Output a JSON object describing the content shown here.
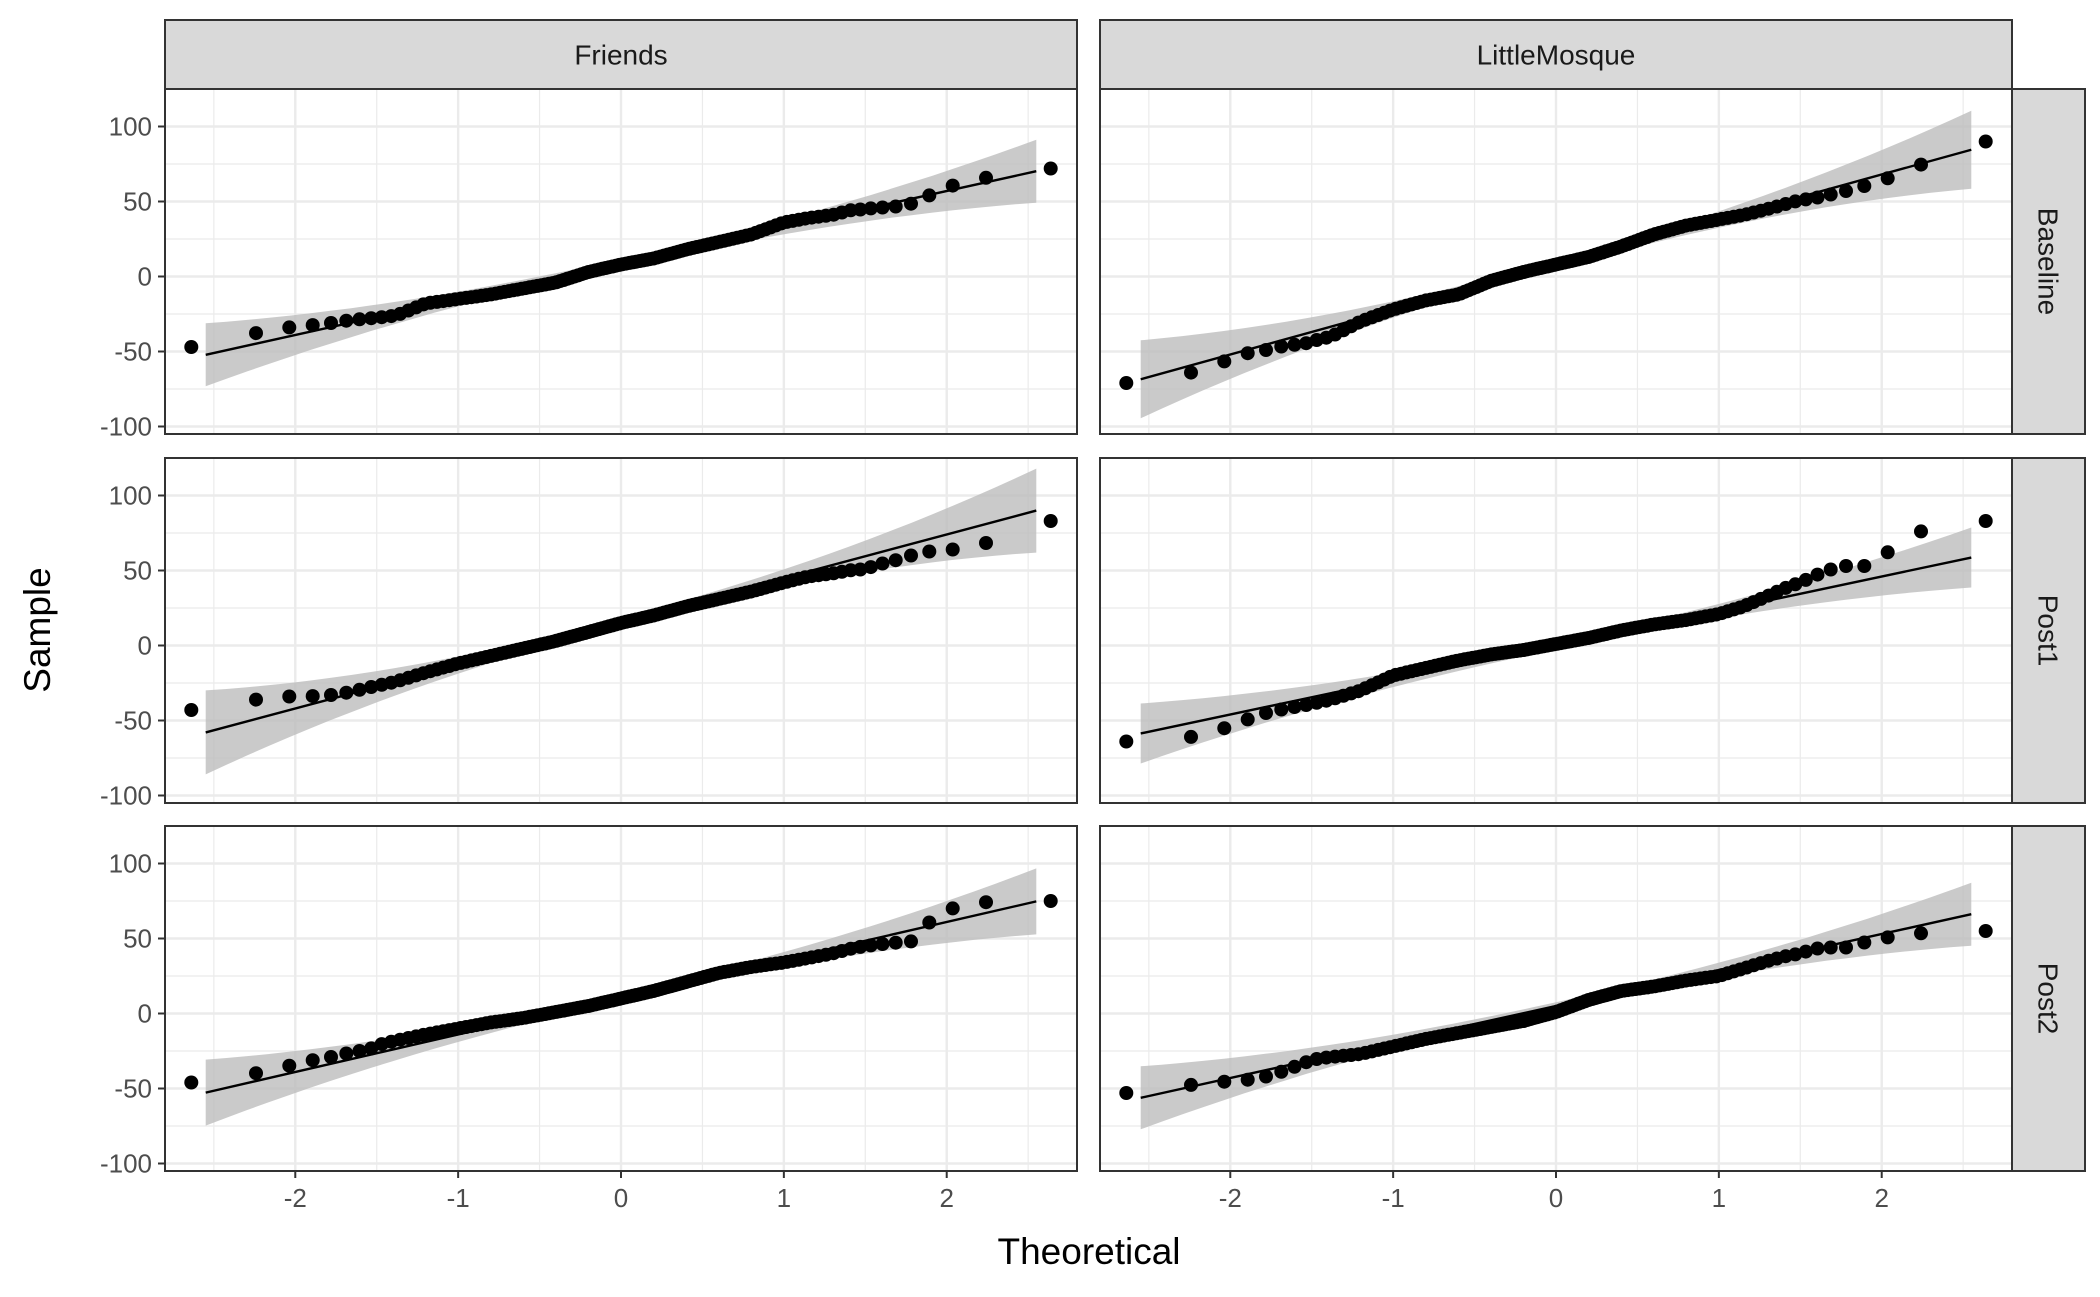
{
  "chart_data": {
    "type": "scatter",
    "subtype": "qq-plot-faceted",
    "xlabel": "Theoretical",
    "ylabel": "Sample",
    "xlim": [
      -2.8,
      2.8
    ],
    "ylim": [
      -105,
      125
    ],
    "x_ticks": [
      -2,
      -1,
      0,
      1,
      2
    ],
    "y_ticks": [
      -100,
      -50,
      0,
      50,
      100
    ],
    "x_tick_labels": [
      "-2",
      "-1",
      "0",
      "1",
      "2"
    ],
    "y_tick_labels": [
      "-100",
      "-50",
      "0",
      "50",
      "100"
    ],
    "columns": [
      "Friends",
      "LittleMosque"
    ],
    "rows": [
      "Baseline",
      "Post1",
      "Post2"
    ],
    "grid": true,
    "colors": {
      "points": "#000000",
      "line": "#000000",
      "band": "#bdbdbd",
      "strip": "#d9d9d9",
      "grid": "#ebebeb"
    },
    "panels": [
      {
        "column": "Friends",
        "row": "Baseline",
        "n": 120,
        "line": {
          "intercept": 9,
          "slope": 24
        },
        "band_halfwidth_at_extremes": 21,
        "points": [
          [
            -2.55,
            -47
          ],
          [
            -2.15,
            -35
          ],
          [
            -1.94,
            -33
          ],
          [
            -1.78,
            -31
          ],
          [
            -1.66,
            -29
          ],
          [
            -1.55,
            -28
          ],
          [
            -1.46,
            -27
          ],
          [
            -1.38,
            -26
          ],
          [
            -1.2,
            -18
          ],
          [
            -1.0,
            -15
          ],
          [
            -0.8,
            -12
          ],
          [
            -0.6,
            -8
          ],
          [
            -0.4,
            -4
          ],
          [
            -0.2,
            3
          ],
          [
            0.0,
            8
          ],
          [
            0.2,
            12
          ],
          [
            0.4,
            18
          ],
          [
            0.6,
            23
          ],
          [
            0.8,
            28
          ],
          [
            1.0,
            36
          ],
          [
            1.15,
            39
          ],
          [
            1.3,
            41
          ],
          [
            1.4,
            44
          ],
          [
            1.5,
            45
          ],
          [
            1.58,
            46
          ],
          [
            1.66,
            46
          ],
          [
            1.74,
            48
          ],
          [
            1.82,
            49
          ],
          [
            1.95,
            58
          ],
          [
            2.15,
            64
          ],
          [
            2.55,
            72
          ]
        ]
      },
      {
        "column": "LittleMosque",
        "row": "Baseline",
        "n": 120,
        "line": {
          "intercept": 8,
          "slope": 30
        },
        "band_halfwidth_at_extremes": 26,
        "points": [
          [
            -2.55,
            -71
          ],
          [
            -2.15,
            -62
          ],
          [
            -1.94,
            -52
          ],
          [
            -1.78,
            -49
          ],
          [
            -1.66,
            -46
          ],
          [
            -1.55,
            -45
          ],
          [
            -1.46,
            -42
          ],
          [
            -1.38,
            -40
          ],
          [
            -1.2,
            -30
          ],
          [
            -1.0,
            -22
          ],
          [
            -0.8,
            -16
          ],
          [
            -0.6,
            -12
          ],
          [
            -0.4,
            -3
          ],
          [
            -0.2,
            3
          ],
          [
            0.0,
            8
          ],
          [
            0.2,
            13
          ],
          [
            0.4,
            20
          ],
          [
            0.6,
            28
          ],
          [
            0.8,
            34
          ],
          [
            1.0,
            38
          ],
          [
            1.15,
            41
          ],
          [
            1.3,
            45
          ],
          [
            1.4,
            48
          ],
          [
            1.5,
            51
          ],
          [
            1.58,
            52
          ],
          [
            1.66,
            54
          ],
          [
            1.78,
            57
          ],
          [
            1.95,
            62
          ],
          [
            2.15,
            70
          ],
          [
            2.55,
            90
          ]
        ]
      },
      {
        "column": "Friends",
        "row": "Post1",
        "n": 120,
        "line": {
          "intercept": 16,
          "slope": 29
        },
        "band_halfwidth_at_extremes": 28,
        "points": [
          [
            -2.55,
            -43
          ],
          [
            -2.15,
            -34
          ],
          [
            -1.94,
            -34
          ],
          [
            -1.78,
            -33
          ],
          [
            -1.66,
            -31
          ],
          [
            -1.55,
            -28
          ],
          [
            -1.46,
            -26
          ],
          [
            -1.38,
            -24
          ],
          [
            -1.2,
            -18
          ],
          [
            -1.0,
            -12
          ],
          [
            -0.8,
            -7
          ],
          [
            -0.6,
            -2
          ],
          [
            -0.4,
            3
          ],
          [
            -0.2,
            9
          ],
          [
            0.0,
            15
          ],
          [
            0.2,
            20
          ],
          [
            0.4,
            26
          ],
          [
            0.6,
            31
          ],
          [
            0.8,
            36
          ],
          [
            1.0,
            42
          ],
          [
            1.15,
            46
          ],
          [
            1.3,
            48
          ],
          [
            1.4,
            50
          ],
          [
            1.5,
            51
          ],
          [
            1.58,
            54
          ],
          [
            1.66,
            56
          ],
          [
            1.78,
            60
          ],
          [
            1.95,
            64
          ],
          [
            2.15,
            64
          ],
          [
            2.55,
            83
          ]
        ]
      },
      {
        "column": "LittleMosque",
        "row": "Post1",
        "n": 120,
        "line": {
          "intercept": 0,
          "slope": 23
        },
        "band_halfwidth_at_extremes": 20,
        "points": [
          [
            -2.55,
            -64
          ],
          [
            -2.15,
            -60
          ],
          [
            -1.94,
            -51
          ],
          [
            -1.78,
            -45
          ],
          [
            -1.66,
            -42
          ],
          [
            -1.55,
            -40
          ],
          [
            -1.46,
            -38
          ],
          [
            -1.38,
            -36
          ],
          [
            -1.2,
            -30
          ],
          [
            -1.0,
            -20
          ],
          [
            -0.8,
            -15
          ],
          [
            -0.6,
            -10
          ],
          [
            -0.4,
            -6
          ],
          [
            -0.2,
            -3
          ],
          [
            0.0,
            1
          ],
          [
            0.2,
            5
          ],
          [
            0.4,
            10
          ],
          [
            0.6,
            14
          ],
          [
            0.8,
            17
          ],
          [
            1.0,
            21
          ],
          [
            1.15,
            26
          ],
          [
            1.3,
            33
          ],
          [
            1.4,
            38
          ],
          [
            1.5,
            42
          ],
          [
            1.58,
            46
          ],
          [
            1.66,
            50
          ],
          [
            1.78,
            53
          ],
          [
            1.95,
            53
          ],
          [
            2.15,
            74
          ],
          [
            2.55,
            83
          ]
        ]
      },
      {
        "column": "Friends",
        "row": "Post2",
        "n": 120,
        "line": {
          "intercept": 11,
          "slope": 25
        },
        "band_halfwidth_at_extremes": 22,
        "points": [
          [
            -2.55,
            -46
          ],
          [
            -2.15,
            -38
          ],
          [
            -1.94,
            -32
          ],
          [
            -1.78,
            -29
          ],
          [
            -1.66,
            -26
          ],
          [
            -1.55,
            -24
          ],
          [
            -1.46,
            -20
          ],
          [
            -1.38,
            -18
          ],
          [
            -1.2,
            -14
          ],
          [
            -1.0,
            -10
          ],
          [
            -0.8,
            -6
          ],
          [
            -0.6,
            -3
          ],
          [
            -0.4,
            1
          ],
          [
            -0.2,
            5
          ],
          [
            0.0,
            10
          ],
          [
            0.2,
            15
          ],
          [
            0.4,
            21
          ],
          [
            0.6,
            27
          ],
          [
            0.8,
            31
          ],
          [
            1.0,
            34
          ],
          [
            1.15,
            37
          ],
          [
            1.3,
            40
          ],
          [
            1.4,
            43
          ],
          [
            1.5,
            45
          ],
          [
            1.58,
            46
          ],
          [
            1.66,
            47
          ],
          [
            1.78,
            48
          ],
          [
            1.95,
            67
          ],
          [
            2.15,
            74
          ],
          [
            2.55,
            75
          ]
        ]
      },
      {
        "column": "LittleMosque",
        "row": "Post2",
        "n": 120,
        "line": {
          "intercept": 5,
          "slope": 24
        },
        "band_halfwidth_at_extremes": 21,
        "points": [
          [
            -2.55,
            -53
          ],
          [
            -2.15,
            -46
          ],
          [
            -1.94,
            -45
          ],
          [
            -1.78,
            -42
          ],
          [
            -1.66,
            -38
          ],
          [
            -1.55,
            -33
          ],
          [
            -1.46,
            -30
          ],
          [
            -1.38,
            -29
          ],
          [
            -1.2,
            -27
          ],
          [
            -1.0,
            -22
          ],
          [
            -0.8,
            -17
          ],
          [
            -0.6,
            -13
          ],
          [
            -0.4,
            -9
          ],
          [
            -0.2,
            -5
          ],
          [
            0.0,
            1
          ],
          [
            0.2,
            9
          ],
          [
            0.4,
            15
          ],
          [
            0.6,
            18
          ],
          [
            0.8,
            22
          ],
          [
            1.0,
            25
          ],
          [
            1.15,
            30
          ],
          [
            1.3,
            35
          ],
          [
            1.4,
            38
          ],
          [
            1.5,
            40
          ],
          [
            1.58,
            43
          ],
          [
            1.66,
            44
          ],
          [
            1.78,
            44
          ],
          [
            1.95,
            49
          ],
          [
            2.15,
            53
          ],
          [
            2.55,
            55
          ]
        ]
      }
    ]
  }
}
